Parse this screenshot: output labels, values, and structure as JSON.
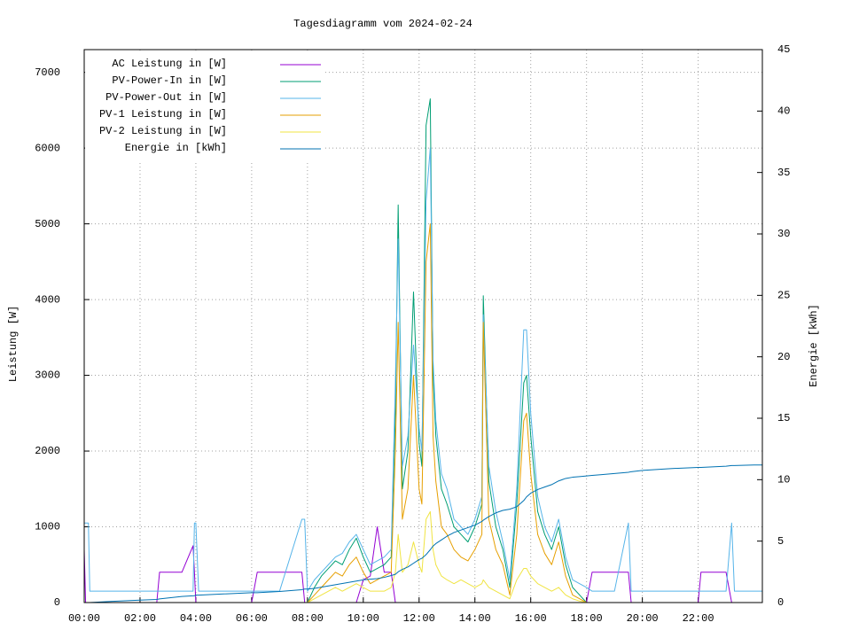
{
  "chart_data": {
    "type": "line",
    "title": "Tagesdiagramm vom 2024-02-24",
    "y_label": "Leistung [W]",
    "y2_label": "Energie [kWh]",
    "grid": true,
    "legend": "top-left",
    "xlim": [
      0,
      24.3
    ],
    "xticks": [
      {
        "value": 0,
        "label": "00:00"
      },
      {
        "value": 2,
        "label": "02:00"
      },
      {
        "value": 4,
        "label": "04:00"
      },
      {
        "value": 6,
        "label": "06:00"
      },
      {
        "value": 8,
        "label": "08:00"
      },
      {
        "value": 10,
        "label": "10:00"
      },
      {
        "value": 12,
        "label": "12:00"
      },
      {
        "value": 14,
        "label": "14:00"
      },
      {
        "value": 16,
        "label": "16:00"
      },
      {
        "value": 18,
        "label": "18:00"
      },
      {
        "value": 20,
        "label": "20:00"
      },
      {
        "value": 22,
        "label": "22:00"
      }
    ],
    "ylim": [
      0,
      7300
    ],
    "yticks": [
      0,
      1000,
      2000,
      3000,
      4000,
      5000,
      6000,
      7000
    ],
    "y2lim": [
      0,
      45
    ],
    "y2ticks": [
      0,
      5,
      10,
      15,
      20,
      25,
      30,
      35,
      40,
      45
    ],
    "x": [
      0,
      0.05,
      0.15,
      0.2,
      1,
      2,
      2.6,
      2.7,
      3.5,
      3.9,
      3.95,
      4.0,
      4.1,
      5,
      6,
      6.2,
      7,
      7.8,
      7.9,
      8,
      8.25,
      8.5,
      8.75,
      9,
      9.25,
      9.5,
      9.75,
      10,
      10.25,
      10.5,
      10.75,
      11,
      11.15,
      11.25,
      11.4,
      11.6,
      11.8,
      12,
      12.1,
      12.25,
      12.4,
      12.5,
      12.6,
      12.8,
      13,
      13.25,
      13.5,
      13.75,
      14,
      14.25,
      14.3,
      14.5,
      14.75,
      15,
      15.25,
      15.5,
      15.75,
      15.85,
      16,
      16.25,
      16.5,
      16.75,
      17,
      17.25,
      17.5,
      17.75,
      18,
      18.2,
      18.5,
      19,
      19.5,
      19.6,
      20,
      21,
      22,
      22.1,
      23,
      23.2,
      23.3,
      24,
      24.3
    ],
    "series": [
      {
        "name": "AC Leistung in [W]",
        "color": "#9400d3",
        "values": [
          700,
          0,
          0,
          0,
          0,
          0,
          0,
          400,
          400,
          750,
          400,
          0,
          0,
          0,
          0,
          400,
          400,
          400,
          0,
          0,
          0,
          0,
          0,
          0,
          0,
          0,
          0,
          300,
          350,
          1000,
          400,
          400,
          0,
          0,
          0,
          0,
          0,
          0,
          0,
          0,
          0,
          0,
          0,
          0,
          0,
          0,
          0,
          0,
          0,
          0,
          0,
          0,
          0,
          0,
          0,
          0,
          0,
          0,
          0,
          0,
          0,
          0,
          0,
          0,
          0,
          0,
          0,
          400,
          400,
          400,
          400,
          0,
          0,
          0,
          0,
          400,
          400,
          0,
          0,
          0,
          0
        ]
      },
      {
        "name": "PV-Power-In in [W]",
        "color": "#009e73",
        "values": [
          0,
          0,
          0,
          0,
          0,
          0,
          0,
          0,
          0,
          0,
          0,
          0,
          0,
          0,
          0,
          0,
          0,
          0,
          0,
          0,
          200,
          350,
          450,
          550,
          500,
          700,
          850,
          600,
          400,
          450,
          500,
          600,
          2500,
          5250,
          1500,
          2000,
          4100,
          2100,
          1800,
          6300,
          6650,
          3000,
          2200,
          1500,
          1300,
          1000,
          900,
          800,
          1000,
          1300,
          4050,
          1600,
          1000,
          700,
          200,
          1300,
          2900,
          3000,
          2200,
          1200,
          900,
          700,
          1000,
          500,
          200,
          100,
          0,
          0,
          0,
          0,
          0,
          0,
          0,
          0,
          0,
          0,
          0,
          0,
          0,
          0,
          0
        ]
      },
      {
        "name": "PV-Power-Out in [W]",
        "color": "#56b4e9",
        "values": [
          1050,
          1050,
          1050,
          150,
          150,
          150,
          150,
          150,
          150,
          150,
          1050,
          1050,
          150,
          150,
          150,
          150,
          150,
          1100,
          1100,
          150,
          300,
          400,
          500,
          600,
          650,
          800,
          900,
          700,
          500,
          550,
          600,
          700,
          2900,
          4800,
          1800,
          2200,
          3400,
          2300,
          2000,
          5300,
          6000,
          3200,
          2400,
          1700,
          1500,
          1100,
          1000,
          900,
          1100,
          1400,
          3800,
          1800,
          1200,
          800,
          300,
          1500,
          3600,
          3600,
          2500,
          1400,
          1000,
          800,
          1100,
          600,
          300,
          250,
          200,
          150,
          150,
          150,
          1050,
          150,
          150,
          150,
          150,
          150,
          150,
          1050,
          150,
          150,
          150
        ]
      },
      {
        "name": "PV-1 Leistung in [W]",
        "color": "#e69f00",
        "values": [
          0,
          0,
          0,
          0,
          0,
          0,
          0,
          0,
          0,
          0,
          0,
          0,
          0,
          0,
          0,
          0,
          0,
          0,
          0,
          0,
          100,
          200,
          300,
          400,
          350,
          500,
          600,
          400,
          250,
          300,
          350,
          400,
          2000,
          3700,
          1100,
          1500,
          3000,
          1500,
          1300,
          4500,
          5000,
          2200,
          1600,
          1000,
          900,
          700,
          600,
          550,
          700,
          900,
          3700,
          1100,
          700,
          500,
          100,
          900,
          2400,
          2500,
          1700,
          900,
          650,
          500,
          800,
          350,
          100,
          50,
          0,
          0,
          0,
          0,
          0,
          0,
          0,
          0,
          0,
          0,
          0,
          0,
          0,
          0,
          0
        ]
      },
      {
        "name": "PV-2 Leistung in [W]",
        "color": "#f0e442",
        "values": [
          0,
          0,
          0,
          0,
          0,
          0,
          0,
          0,
          0,
          0,
          0,
          0,
          0,
          0,
          0,
          0,
          0,
          0,
          0,
          0,
          50,
          100,
          150,
          200,
          150,
          200,
          250,
          200,
          150,
          150,
          150,
          200,
          400,
          900,
          400,
          500,
          800,
          500,
          400,
          1100,
          1200,
          700,
          500,
          350,
          300,
          250,
          300,
          250,
          200,
          250,
          300,
          200,
          150,
          100,
          50,
          300,
          450,
          450,
          350,
          250,
          200,
          150,
          200,
          100,
          50,
          20,
          0,
          0,
          0,
          0,
          0,
          0,
          0,
          0,
          0,
          0,
          0,
          0,
          0,
          0,
          0
        ]
      },
      {
        "name": "Energie in [kWh]",
        "color": "#0072b2",
        "axis": "y2",
        "values": [
          0,
          0,
          0,
          0,
          0.1,
          0.2,
          0.25,
          0.3,
          0.5,
          0.55,
          0.56,
          0.6,
          0.6,
          0.7,
          0.8,
          0.8,
          0.9,
          1.05,
          1.1,
          1.1,
          1.15,
          1.25,
          1.35,
          1.45,
          1.55,
          1.65,
          1.75,
          1.85,
          1.9,
          1.95,
          2.05,
          2.2,
          2.3,
          2.5,
          2.7,
          2.9,
          3.2,
          3.5,
          3.6,
          3.9,
          4.3,
          4.6,
          4.8,
          5.1,
          5.4,
          5.7,
          5.9,
          6.1,
          6.3,
          6.6,
          6.7,
          7.0,
          7.3,
          7.5,
          7.6,
          7.8,
          8.3,
          8.6,
          8.9,
          9.2,
          9.4,
          9.6,
          9.9,
          10.1,
          10.2,
          10.25,
          10.3,
          10.35,
          10.4,
          10.5,
          10.6,
          10.65,
          10.75,
          10.9,
          11.0,
          11.0,
          11.1,
          11.15,
          11.15,
          11.2,
          11.2
        ]
      }
    ]
  }
}
